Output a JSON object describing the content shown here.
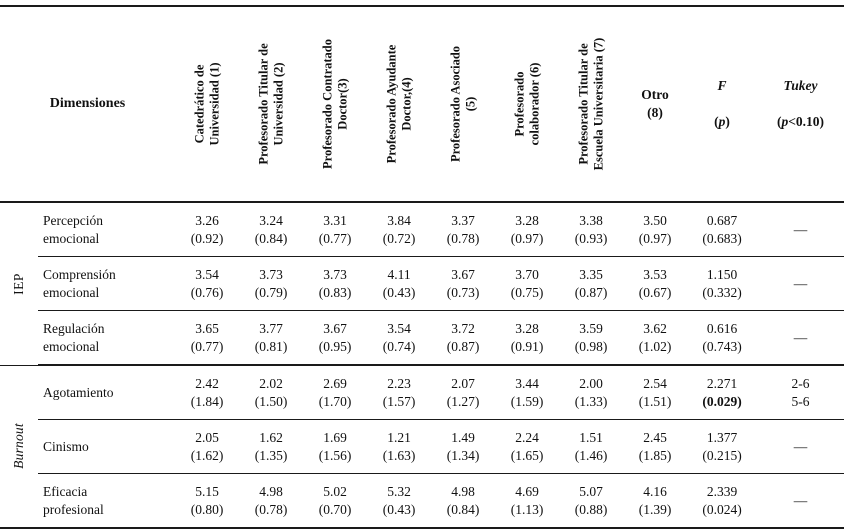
{
  "header": {
    "dimensiones": "Dimensiones",
    "columns": [
      "Catedrático de\nUniversidad (1)",
      "Profesorado Titular de\nUniversidad (2)",
      "Profesorado Contratado\nDoctor(3)",
      "Profesorado Ayudante\nDoctor,(4)",
      "Profesorado Asociado\n(5)",
      "Profesorado\ncolaborador (6)",
      "Profesorado Titular de\nEscuela Universitaria (7)"
    ],
    "otro": "Otro\n(8)",
    "f": {
      "label": "F",
      "p_open": "(",
      "p_var": "p",
      "p_close": ")"
    },
    "tukey": {
      "label": "Tukey",
      "p_open": "(",
      "p_var": "p",
      "p_rest": "<0.10)"
    }
  },
  "body": {
    "groups": [
      {
        "label": "IEP",
        "rows": [
          {
            "name": "Percepción\nemocional",
            "cells": [
              "3.26\n(0.92)",
              "3.24\n(0.84)",
              "3.31\n(0.77)",
              "3.84\n(0.72)",
              "3.37\n(0.78)",
              "3.28\n(0.97)",
              "3.38\n(0.93)",
              "3.50\n(0.97)"
            ],
            "f_m": "0.687",
            "f_p": "(0.683)",
            "tukey": "—"
          },
          {
            "name": "Comprensión\nemocional",
            "cells": [
              "3.54\n(0.76)",
              "3.73\n(0.79)",
              "3.73\n(0.83)",
              "4.11\n(0.43)",
              "3.67\n(0.73)",
              "3.70\n(0.75)",
              "3.35\n(0.87)",
              "3.53\n(0.67)"
            ],
            "f_m": "1.150",
            "f_p": "(0.332)",
            "tukey": "—"
          },
          {
            "name": "Regulación\nemocional",
            "cells": [
              "3.65\n(0.77)",
              "3.77\n(0.81)",
              "3.67\n(0.95)",
              "3.54\n(0.74)",
              "3.72\n(0.87)",
              "3.28\n(0.91)",
              "3.59\n(0.98)",
              "3.62\n(1.02)"
            ],
            "f_m": "0.616",
            "f_p": "(0.743)",
            "tukey": "—"
          }
        ]
      },
      {
        "label": "Burnout",
        "rows": [
          {
            "name": "Agotamiento",
            "cells": [
              "2.42\n(1.84)",
              "2.02\n(1.50)",
              "2.69\n(1.70)",
              "2.23\n(1.57)",
              "2.07\n(1.27)",
              "3.44\n(1.59)",
              "2.00\n(1.33)",
              "2.54\n(1.51)"
            ],
            "f_m": "2.271",
            "f_p": "(0.029)",
            "tukey": "2-6\n5-6"
          },
          {
            "name": "Cinismo",
            "cells": [
              "2.05\n(1.62)",
              "1.62\n(1.35)",
              "1.69\n(1.56)",
              "1.21\n(1.63)",
              "1.49\n(1.34)",
              "2.24\n(1.65)",
              "1.51\n(1.46)",
              "2.45\n(1.85)"
            ],
            "f_m": "1.377",
            "f_p": "(0.215)",
            "tukey": "—"
          },
          {
            "name": "Eficacia\nprofesional",
            "cells": [
              "5.15\n(0.80)",
              "4.98\n(0.78)",
              "5.02\n(0.70)",
              "5.32\n(0.43)",
              "4.98\n(0.84)",
              "4.69\n(1.13)",
              "5.07\n(0.88)",
              "4.16\n(1.39)"
            ],
            "f_m": "2.339",
            "f_p": "(0.024)",
            "tukey": "—"
          }
        ]
      }
    ]
  },
  "chart_data": {
    "type": "table",
    "columns": [
      "Catedrático de Universidad (1)",
      "Profesorado Titular de Universidad (2)",
      "Profesorado Contratado Doctor (3)",
      "Profesorado Ayudante Doctor (4)",
      "Profesorado Asociado (5)",
      "Profesorado colaborador (6)",
      "Profesorado Titular de Escuela Universitaria (7)",
      "Otro (8)"
    ],
    "rows": [
      {
        "group": "IEP",
        "dimension": "Percepción emocional",
        "means": [
          3.26,
          3.24,
          3.31,
          3.84,
          3.37,
          3.28,
          3.38,
          3.5
        ],
        "sds": [
          0.92,
          0.84,
          0.77,
          0.72,
          0.78,
          0.97,
          0.93,
          0.97
        ],
        "F": 0.687,
        "p": 0.683,
        "tukey": null
      },
      {
        "group": "IEP",
        "dimension": "Comprensión emocional",
        "means": [
          3.54,
          3.73,
          3.73,
          4.11,
          3.67,
          3.7,
          3.35,
          3.53
        ],
        "sds": [
          0.76,
          0.79,
          0.83,
          0.43,
          0.73,
          0.75,
          0.87,
          0.67
        ],
        "F": 1.15,
        "p": 0.332,
        "tukey": null
      },
      {
        "group": "IEP",
        "dimension": "Regulación emocional",
        "means": [
          3.65,
          3.77,
          3.67,
          3.54,
          3.72,
          3.28,
          3.59,
          3.62
        ],
        "sds": [
          0.77,
          0.81,
          0.95,
          0.74,
          0.87,
          0.91,
          0.98,
          1.02
        ],
        "F": 0.616,
        "p": 0.743,
        "tukey": null
      },
      {
        "group": "Burnout",
        "dimension": "Agotamiento",
        "means": [
          2.42,
          2.02,
          2.69,
          2.23,
          2.07,
          3.44,
          2.0,
          2.54
        ],
        "sds": [
          1.84,
          1.5,
          1.7,
          1.57,
          1.27,
          1.59,
          1.33,
          1.51
        ],
        "F": 2.271,
        "p": 0.029,
        "tukey": "2-6, 5-6"
      },
      {
        "group": "Burnout",
        "dimension": "Cinismo",
        "means": [
          2.05,
          1.62,
          1.69,
          1.21,
          1.49,
          2.24,
          1.51,
          2.45
        ],
        "sds": [
          1.62,
          1.35,
          1.56,
          1.63,
          1.34,
          1.65,
          1.46,
          1.85
        ],
        "F": 1.377,
        "p": 0.215,
        "tukey": null
      },
      {
        "group": "Burnout",
        "dimension": "Eficacia profesional",
        "means": [
          5.15,
          4.98,
          5.02,
          5.32,
          4.98,
          4.69,
          5.07,
          4.16
        ],
        "sds": [
          0.8,
          0.78,
          0.7,
          0.43,
          0.84,
          1.13,
          0.88,
          1.39
        ],
        "F": 2.339,
        "p": 0.024,
        "tukey": null
      }
    ]
  }
}
